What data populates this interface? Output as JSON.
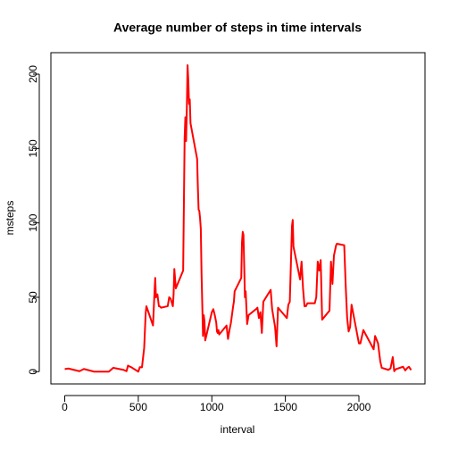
{
  "chart_data": {
    "type": "line",
    "title": "Average number of steps in time intervals",
    "x_label": "interval",
    "y_label": "msteps",
    "color": "#ff0000",
    "x": [
      0,
      25,
      100,
      130,
      200,
      300,
      330,
      400,
      420,
      430,
      440,
      450,
      500,
      510,
      525,
      540,
      550,
      555,
      600,
      610,
      615,
      620,
      630,
      640,
      645,
      655,
      700,
      710,
      720,
      735,
      740,
      745,
      755,
      805,
      815,
      820,
      825,
      830,
      835,
      840,
      845,
      850,
      855,
      900,
      905,
      910,
      915,
      920,
      925,
      930,
      935,
      940,
      945,
      950,
      955,
      1000,
      1010,
      1020,
      1030,
      1035,
      1040,
      1045,
      1050,
      1100,
      1110,
      1120,
      1130,
      1145,
      1150,
      1155,
      1200,
      1205,
      1210,
      1215,
      1225,
      1230,
      1240,
      1250,
      1300,
      1310,
      1320,
      1330,
      1340,
      1350,
      1400,
      1410,
      1430,
      1440,
      1450,
      1510,
      1520,
      1530,
      1540,
      1545,
      1550,
      1555,
      1600,
      1610,
      1620,
      1630,
      1640,
      1650,
      1700,
      1710,
      1720,
      1730,
      1740,
      1750,
      1800,
      1810,
      1820,
      1830,
      1845,
      1850,
      1900,
      1910,
      1920,
      1930,
      1940,
      1950,
      2000,
      2010,
      2030,
      2100,
      2110,
      2130,
      2145,
      2155,
      2200,
      2215,
      2230,
      2240,
      2250,
      2300,
      2315,
      2330,
      2340,
      2355
    ],
    "values": [
      1.7,
      2.1,
      0.3,
      1.8,
      0,
      0,
      2.6,
      1.2,
      0.3,
      4.1,
      3.5,
      3.1,
      0,
      3.0,
      2.9,
      16,
      39,
      44,
      31,
      53,
      63,
      50,
      52,
      44,
      44,
      43,
      44,
      50,
      49,
      44,
      52,
      69,
      56,
      68,
      157,
      171,
      155,
      177,
      206,
      196,
      180,
      183,
      167,
      143,
      124,
      109,
      108,
      103,
      96,
      66,
      45,
      24,
      38,
      34,
      21,
      40,
      42,
      38,
      33,
      27,
      26,
      28,
      25,
      31,
      22,
      28,
      33,
      44,
      47,
      54,
      63,
      87,
      94,
      92,
      50,
      54,
      32,
      38,
      42,
      43,
      36,
      40,
      26,
      47,
      55,
      42,
      30,
      17,
      43,
      36,
      45,
      47,
      81,
      98,
      102,
      84,
      62,
      74,
      56,
      44,
      44,
      46,
      46,
      50,
      74,
      68,
      75,
      35,
      41,
      74,
      59,
      78,
      85,
      86,
      85,
      58,
      36,
      27,
      30,
      45,
      19,
      19,
      28,
      15,
      24,
      19,
      7,
      2.6,
      1.2,
      2.2,
      9.8,
      0.3,
      1.6,
      3.3,
      0.8,
      2.6,
      3.3,
      1.1
    ],
    "xlim": [
      -94.2,
      2449.2
    ],
    "ylim": [
      -8.25,
      214.42
    ],
    "xticks": [
      0,
      500,
      1000,
      1500,
      2000
    ],
    "yticks": [
      0,
      50,
      100,
      150,
      200
    ]
  }
}
